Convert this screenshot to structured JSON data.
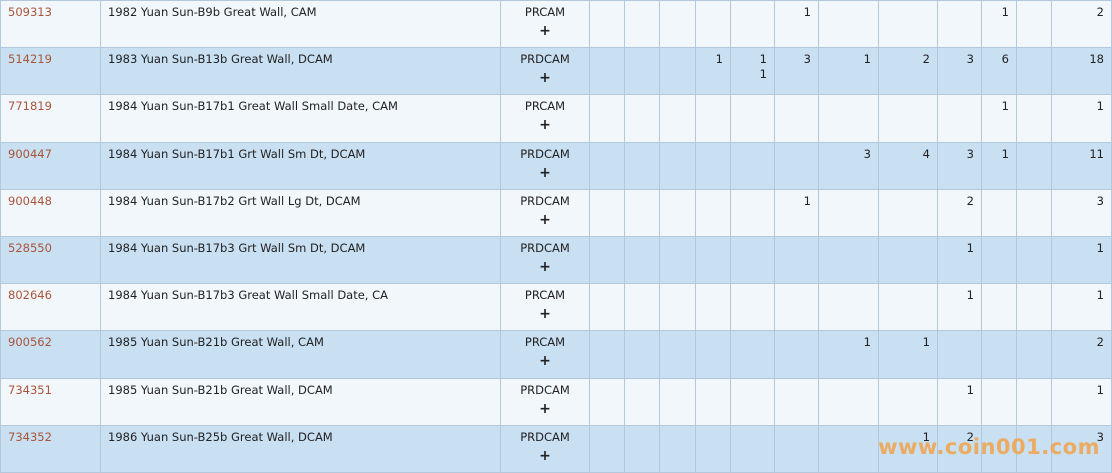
{
  "table": {
    "expand_symbol": "+",
    "rows": [
      {
        "id": "509313",
        "description": "1982 Yuan Sun-B9b Great Wall, CAM",
        "designation": "PRCAM",
        "cells": [
          null,
          null,
          null,
          null,
          null,
          1,
          null,
          null,
          null,
          1,
          null,
          2
        ]
      },
      {
        "id": "514219",
        "description": "1983 Yuan Sun-B13b Great Wall, DCAM",
        "designation": "PRDCAM",
        "cells": [
          null,
          null,
          null,
          1,
          [
            1,
            1
          ],
          3,
          1,
          2,
          3,
          6,
          null,
          18
        ]
      },
      {
        "id": "771819",
        "description": "1984 Yuan Sun-B17b1 Great Wall Small Date, CAM",
        "designation": "PRCAM",
        "cells": [
          null,
          null,
          null,
          null,
          null,
          null,
          null,
          null,
          null,
          1,
          null,
          1
        ]
      },
      {
        "id": "900447",
        "description": "1984 Yuan Sun-B17b1 Grt Wall Sm Dt, DCAM",
        "designation": "PRDCAM",
        "cells": [
          null,
          null,
          null,
          null,
          null,
          null,
          3,
          4,
          3,
          1,
          null,
          11
        ]
      },
      {
        "id": "900448",
        "description": "1984 Yuan Sun-B17b2 Grt Wall Lg Dt, DCAM",
        "designation": "PRDCAM",
        "cells": [
          null,
          null,
          null,
          null,
          null,
          1,
          null,
          null,
          2,
          null,
          null,
          3
        ]
      },
      {
        "id": "528550",
        "description": "1984 Yuan Sun-B17b3 Grt Wall Sm Dt, DCAM",
        "designation": "PRDCAM",
        "cells": [
          null,
          null,
          null,
          null,
          null,
          null,
          null,
          null,
          1,
          null,
          null,
          1
        ]
      },
      {
        "id": "802646",
        "description": "1984 Yuan Sun-B17b3 Great Wall Small Date, CA",
        "designation": "PRCAM",
        "cells": [
          null,
          null,
          null,
          null,
          null,
          null,
          null,
          null,
          1,
          null,
          null,
          1
        ]
      },
      {
        "id": "900562",
        "description": "1985 Yuan Sun-B21b Great Wall, CAM",
        "designation": "PRCAM",
        "cells": [
          null,
          null,
          null,
          null,
          null,
          null,
          1,
          1,
          null,
          null,
          null,
          2
        ]
      },
      {
        "id": "734351",
        "description": "1985 Yuan Sun-B21b Great Wall, DCAM",
        "designation": "PRDCAM",
        "cells": [
          null,
          null,
          null,
          null,
          null,
          null,
          null,
          null,
          1,
          null,
          null,
          1
        ]
      },
      {
        "id": "734352",
        "description": "1986 Yuan Sun-B25b Great Wall, DCAM",
        "designation": "PRDCAM",
        "cells": [
          null,
          null,
          null,
          null,
          null,
          null,
          null,
          1,
          2,
          null,
          null,
          3
        ]
      }
    ],
    "watermark": "www.coin001.com"
  }
}
